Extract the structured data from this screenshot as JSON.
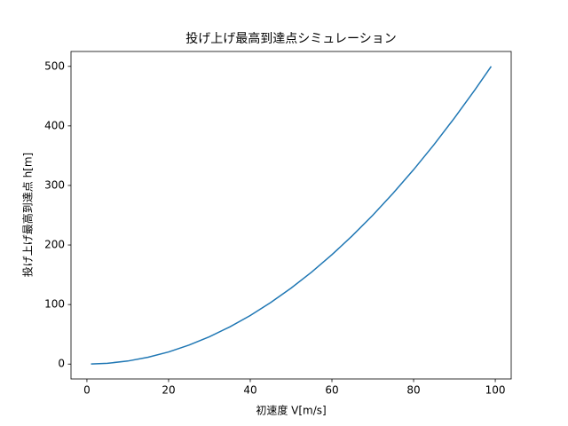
{
  "chart_data": {
    "type": "line",
    "title": "投げ上げ最高到達点シミュレーション",
    "x_label": "初速度 V[m/s]",
    "y_label": "投げ上げ最高到達点 h[m]",
    "x": [
      1,
      5,
      10,
      15,
      20,
      25,
      30,
      35,
      40,
      45,
      50,
      55,
      60,
      65,
      70,
      75,
      80,
      85,
      90,
      95,
      99
    ],
    "series": [
      {
        "color": "#1f77b4",
        "values": [
          0.1,
          1.3,
          5.1,
          11.5,
          20.4,
          31.9,
          45.9,
          62.5,
          81.6,
          103.3,
          127.6,
          154.3,
          183.7,
          215.6,
          250.0,
          287.0,
          326.5,
          368.6,
          413.3,
          460.5,
          500.0
        ]
      }
    ],
    "xlim": [
      -3.9,
      103.9
    ],
    "xticks": [
      0,
      20,
      40,
      60,
      80,
      100
    ],
    "ylim": [
      -25,
      525
    ],
    "yticks": [
      0,
      100,
      200,
      300,
      400,
      500
    ],
    "grid": false
  }
}
